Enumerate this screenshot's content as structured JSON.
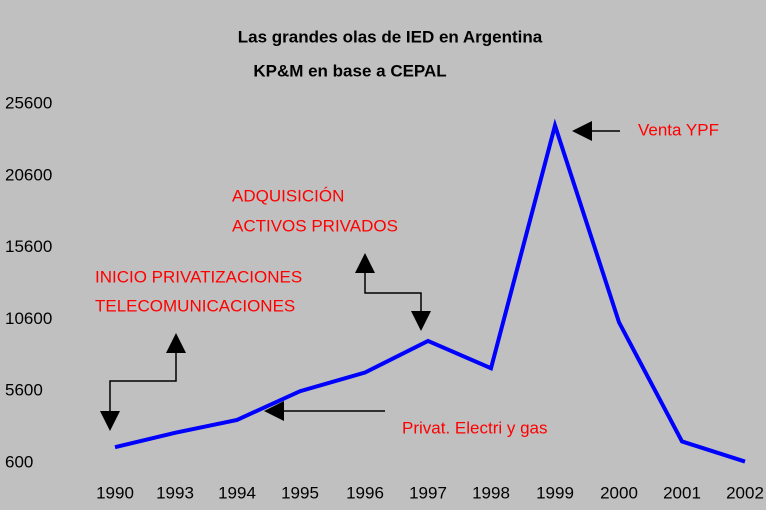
{
  "chart_data": {
    "type": "line",
    "title": "Las grandes olas de IED en Argentina",
    "subtitle": "KP&M en base a CEPAL",
    "categories": [
      "1990",
      "1993",
      "1994",
      "1995",
      "1996",
      "1997",
      "1998",
      "1999",
      "2000",
      "2001",
      "2002"
    ],
    "series": [
      {
        "color": "#0000ff",
        "values": [
          1700,
          2700,
          3600,
          5600,
          6900,
          9100,
          7200,
          24100,
          10400,
          2100,
          700
        ]
      }
    ],
    "ylim": [
      600,
      25600
    ],
    "yticks": [
      600,
      5600,
      10600,
      15600,
      20600,
      25600
    ],
    "grid": false,
    "annotations": [
      "Venta YPF",
      "ADQUISICIÓN",
      "ACTIVOS PRIVADOS",
      "INICIO PRIVATIZACIONES",
      "TELECOMUNICACIONES",
      "Privat. Electri y gas"
    ],
    "annotation_color": "#ff0000"
  }
}
